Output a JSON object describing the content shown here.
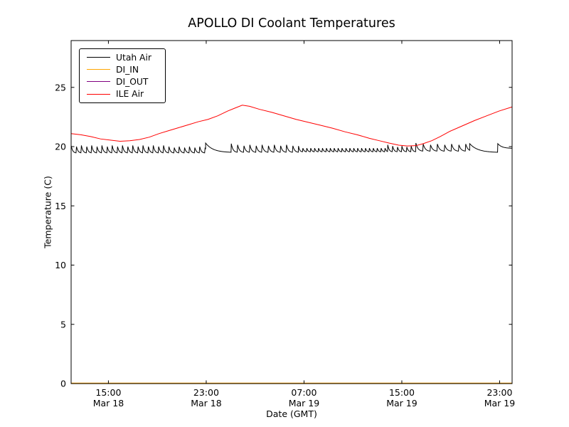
{
  "chart_data": {
    "type": "line",
    "title": "APOLLO DI Coolant Temperatures",
    "xlabel": "Date (GMT)",
    "ylabel": "Temperature (C)",
    "grid": false,
    "legend_position": "upper left",
    "ylim": [
      0,
      28.95
    ],
    "yticks": [
      0,
      5,
      10,
      15,
      20,
      25
    ],
    "xlim_hours": [
      0,
      36.07
    ],
    "xticks": [
      {
        "h": 3.05,
        "time": "15:00",
        "date": "Mar 18"
      },
      {
        "h": 11.05,
        "time": "23:00",
        "date": "Mar 18"
      },
      {
        "h": 19.05,
        "time": "07:00",
        "date": "Mar 19"
      },
      {
        "h": 27.05,
        "time": "15:00",
        "date": "Mar 19"
      },
      {
        "h": 35.05,
        "time": "23:00",
        "date": "Mar 19"
      }
    ],
    "series": [
      {
        "name": "Utah Air",
        "color": "#000000",
        "style": "sawtooth",
        "approx_range_c": [
          19.45,
          20.4
        ],
        "sawtooth_segments": [
          {
            "from": 0.0,
            "to": 11.0,
            "period": 0.42,
            "peak": 20.1,
            "base": 19.45
          },
          {
            "from": 11.0,
            "to": 13.1,
            "period": 2.1,
            "peak": 20.3,
            "base": 19.5
          },
          {
            "from": 13.1,
            "to": 18.6,
            "period": 0.5,
            "peak": 20.25,
            "base": 19.5
          },
          {
            "from": 18.6,
            "to": 25.9,
            "period": 0.32,
            "peak": 20.05,
            "base": 19.55
          },
          {
            "from": 25.9,
            "to": 28.2,
            "period": 0.38,
            "peak": 20.15,
            "base": 19.55
          },
          {
            "from": 28.2,
            "to": 32.6,
            "period": 0.58,
            "peak": 20.3,
            "base": 19.6
          },
          {
            "from": 32.6,
            "to": 34.9,
            "period": 2.3,
            "peak": 20.25,
            "base": 19.5
          },
          {
            "from": 34.9,
            "to": 36.07,
            "period": 1.17,
            "peak": 20.25,
            "base": 19.85
          }
        ]
      },
      {
        "name": "DI_IN",
        "color": "#ffa500",
        "style": "flat",
        "points": [
          [
            0,
            0
          ],
          [
            36.07,
            0
          ]
        ]
      },
      {
        "name": "DI_OUT",
        "color": "#800080",
        "style": "flat",
        "points": [
          [
            0,
            0
          ],
          [
            36.07,
            0
          ]
        ]
      },
      {
        "name": "ILE Air",
        "color": "#ff0000",
        "style": "line",
        "points": [
          [
            0,
            21.1
          ],
          [
            0.8,
            21.0
          ],
          [
            1.6,
            20.85
          ],
          [
            2.4,
            20.65
          ],
          [
            3.2,
            20.55
          ],
          [
            4.0,
            20.45
          ],
          [
            4.8,
            20.5
          ],
          [
            5.6,
            20.6
          ],
          [
            6.4,
            20.8
          ],
          [
            7.2,
            21.1
          ],
          [
            8.0,
            21.35
          ],
          [
            8.8,
            21.6
          ],
          [
            9.6,
            21.85
          ],
          [
            10.4,
            22.1
          ],
          [
            11.2,
            22.3
          ],
          [
            12.0,
            22.6
          ],
          [
            12.8,
            23.0
          ],
          [
            13.4,
            23.25
          ],
          [
            14.0,
            23.5
          ],
          [
            14.6,
            23.4
          ],
          [
            15.4,
            23.15
          ],
          [
            16.4,
            22.9
          ],
          [
            17.4,
            22.6
          ],
          [
            18.4,
            22.3
          ],
          [
            19.4,
            22.05
          ],
          [
            20.4,
            21.8
          ],
          [
            21.4,
            21.55
          ],
          [
            22.4,
            21.25
          ],
          [
            23.4,
            21.0
          ],
          [
            24.4,
            20.7
          ],
          [
            25.2,
            20.5
          ],
          [
            26.0,
            20.3
          ],
          [
            26.8,
            20.12
          ],
          [
            27.5,
            20.05
          ],
          [
            28.2,
            20.08
          ],
          [
            28.8,
            20.25
          ],
          [
            29.5,
            20.5
          ],
          [
            30.2,
            20.85
          ],
          [
            31.0,
            21.3
          ],
          [
            32.0,
            21.75
          ],
          [
            33.0,
            22.2
          ],
          [
            34.0,
            22.6
          ],
          [
            35.0,
            23.0
          ],
          [
            36.07,
            23.35
          ]
        ]
      }
    ]
  }
}
